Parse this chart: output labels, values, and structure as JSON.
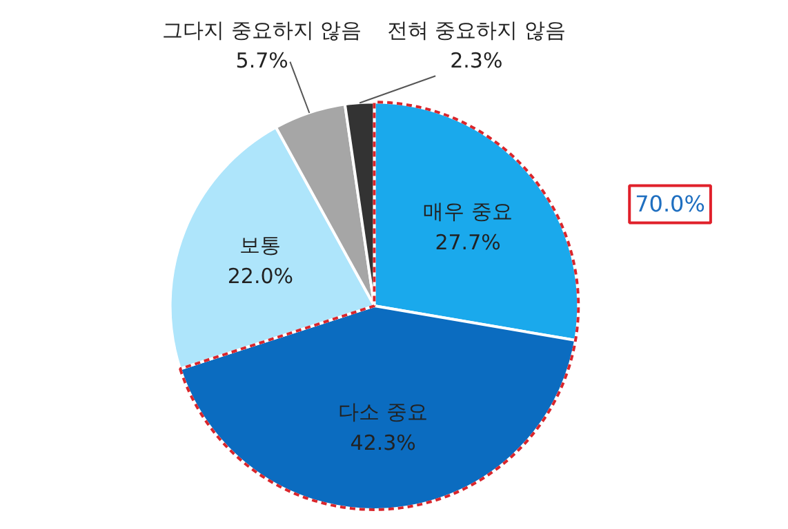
{
  "chart_data": {
    "type": "pie",
    "categories": [
      "매우 중요",
      "다소 중요",
      "보통",
      "그다지 중요하지 않음",
      "전혀 중요하지 않음"
    ],
    "values": [
      27.7,
      42.3,
      22.0,
      5.7,
      2.3
    ],
    "colors": [
      "#1aa9ec",
      "#0b6cc0",
      "#aee5fb",
      "#a6a6a6",
      "#333333"
    ],
    "value_labels": [
      "27.7%",
      "42.3%",
      "22.0%",
      "5.7%",
      "2.3%"
    ],
    "annotations": [
      "70.0%"
    ]
  }
}
